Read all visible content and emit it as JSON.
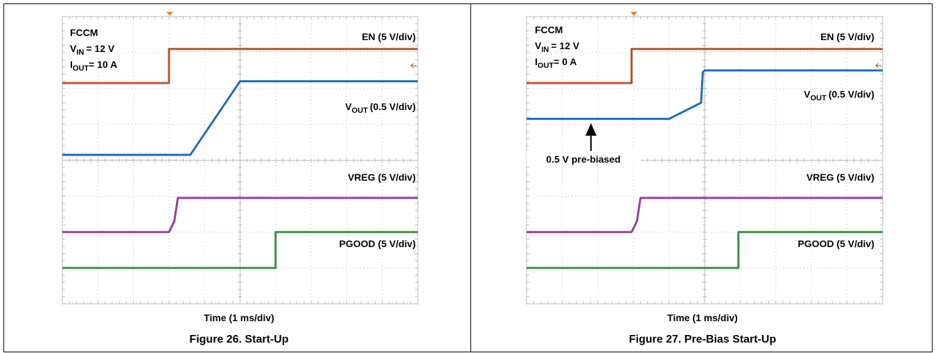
{
  "figures": [
    {
      "caption": "Figure 26. Start-Up",
      "xlabel": "Time (1 ms/div)",
      "conditions": {
        "mode": "FCCM",
        "vin": {
          "symbol": "V",
          "subscript": "IN",
          "value": "= 12 V"
        },
        "iout": {
          "symbol": "I",
          "subscript": "OUT",
          "value": "= 10 A"
        }
      },
      "channel_labels": {
        "en": "EN (5 V/div)",
        "vout": {
          "symbol": "V",
          "subscript": "OUT",
          "scale": "(0.5 V/div)"
        },
        "vreg": "VREG (5 V/div)",
        "pgood": "PGOOD (5 V/div)"
      }
    },
    {
      "caption": "Figure 27. Pre-Bias Start-Up",
      "xlabel": "Time (1 ms/div)",
      "conditions": {
        "mode": "FCCM",
        "vin": {
          "symbol": "V",
          "subscript": "IN",
          "value": "= 12 V"
        },
        "iout": {
          "symbol": "I",
          "subscript": "OUT",
          "value": "= 0 A"
        }
      },
      "channel_labels": {
        "en": "EN (5 V/div)",
        "vout": {
          "symbol": "V",
          "subscript": "OUT",
          "scale": "(0.5 V/div)"
        },
        "vreg": "VREG (5 V/div)",
        "pgood": "PGOOD (5 V/div)"
      },
      "annotation": "0.5 V pre-biased"
    }
  ],
  "colors": {
    "en": "#b5552a",
    "vout": "#1c6cb5",
    "vreg": "#993aa2",
    "pgood": "#3a8f3e",
    "trigger": "#e8843c",
    "grid": "#b9b9b9"
  },
  "chart_data": [
    {
      "type": "line",
      "title": "Figure 26. Start-Up",
      "xlabel": "Time (1 ms/div)",
      "grid": true,
      "x_divisions": 10,
      "y_divisions": 8,
      "units": {
        "x": "div",
        "y": "div"
      },
      "series": [
        {
          "name": "EN (5 V/div)",
          "points": [
            [
              0,
              6.15
            ],
            [
              3.0,
              6.15
            ],
            [
              3.0,
              7.1
            ],
            [
              10,
              7.1
            ]
          ]
        },
        {
          "name": "VOUT (0.5 V/div)",
          "points": [
            [
              0,
              4.15
            ],
            [
              3.6,
              4.15
            ],
            [
              5.0,
              6.2
            ],
            [
              10,
              6.2
            ]
          ]
        },
        {
          "name": "VREG (5 V/div)",
          "points": [
            [
              0,
              2.0
            ],
            [
              3.0,
              2.0
            ],
            [
              3.15,
              2.3
            ],
            [
              3.25,
              2.95
            ],
            [
              10,
              2.95
            ]
          ]
        },
        {
          "name": "PGOOD (5 V/div)",
          "points": [
            [
              0,
              1.0
            ],
            [
              6.0,
              1.0
            ],
            [
              6.0,
              2.0
            ],
            [
              10,
              2.0
            ]
          ]
        }
      ]
    },
    {
      "type": "line",
      "title": "Figure 27. Pre-Bias Start-Up",
      "xlabel": "Time (1 ms/div)",
      "grid": true,
      "x_divisions": 10,
      "y_divisions": 8,
      "units": {
        "x": "div",
        "y": "div"
      },
      "series": [
        {
          "name": "EN (5 V/div)",
          "points": [
            [
              0,
              6.15
            ],
            [
              2.95,
              6.15
            ],
            [
              2.95,
              7.1
            ],
            [
              10,
              7.1
            ]
          ]
        },
        {
          "name": "VOUT (0.5 V/div)",
          "points": [
            [
              0,
              5.15
            ],
            [
              4.0,
              5.15
            ],
            [
              4.9,
              5.6
            ],
            [
              4.95,
              6.45
            ],
            [
              5.0,
              6.5
            ],
            [
              10,
              6.5
            ]
          ]
        },
        {
          "name": "VREG (5 V/div)",
          "points": [
            [
              0,
              2.0
            ],
            [
              2.95,
              2.0
            ],
            [
              3.1,
              2.3
            ],
            [
              3.2,
              2.95
            ],
            [
              10,
              2.95
            ]
          ]
        },
        {
          "name": "PGOOD (5 V/div)",
          "points": [
            [
              0,
              1.0
            ],
            [
              5.95,
              1.0
            ],
            [
              5.95,
              2.0
            ],
            [
              10,
              2.0
            ]
          ]
        }
      ],
      "annotations": [
        {
          "text": "0.5 V pre-biased",
          "series": "VOUT (0.5 V/div)",
          "x": 1.8
        }
      ]
    }
  ]
}
